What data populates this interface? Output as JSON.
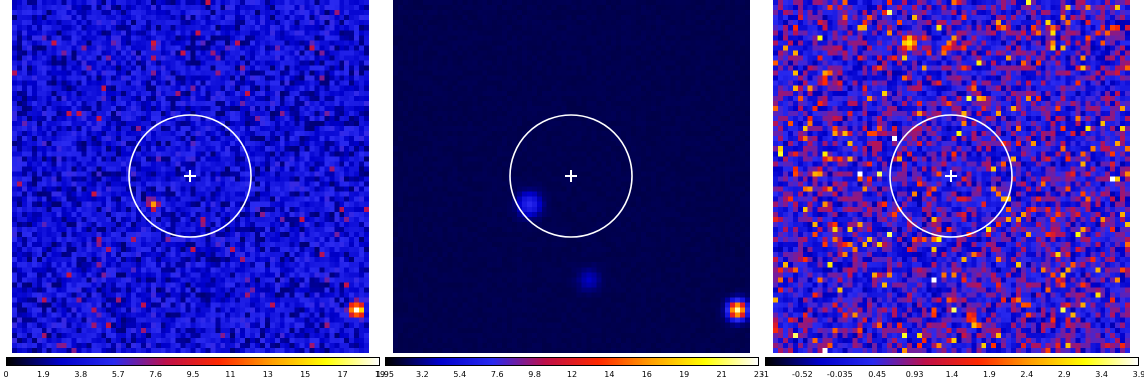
{
  "panels": [
    {
      "id": "observed",
      "colormap": "blue-red-yellow",
      "ticks": [
        "0",
        "1.9",
        "3.8",
        "5.7",
        "7.6",
        "9.5",
        "11",
        "13",
        "15",
        "17",
        "19"
      ],
      "circle": true,
      "cross": true
    },
    {
      "id": "model",
      "colormap": "dark-blue-red-yellow",
      "ticks": [
        "1.95",
        "3.2",
        "5.4",
        "7.6",
        "9.8",
        "12",
        "14",
        "16",
        "19",
        "21",
        "23"
      ],
      "circle": true,
      "cross": true
    },
    {
      "id": "residual",
      "colormap": "blue-red-yellow",
      "ticks": [
        "-1",
        "-0.52",
        "-0.035",
        "0.45",
        "0.93",
        "1.4",
        "1.9",
        "2.4",
        "2.9",
        "3.4",
        "3.9"
      ],
      "circle": true,
      "cross": true
    }
  ],
  "colors": {
    "circle": "#ffffff",
    "cross": "#ffffff",
    "colorbar_stops": [
      "#000000",
      "#0000cc",
      "#2a2af0",
      "#c0104a",
      "#ff2a00",
      "#ffa000",
      "#ffff00",
      "#ffffff"
    ]
  }
}
